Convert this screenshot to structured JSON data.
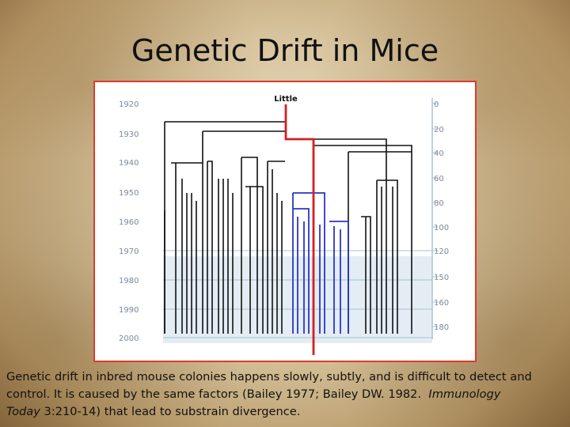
{
  "slide": {
    "title": "Genetic Drift in Mice",
    "caption": {
      "part1": "Genetic drift in inbred mouse colonies happens slowly, subtly, and is difficult to detect and control. It is caused by the same factors (Bailey 1977; Bailey DW. 1982.",
      "journal_a": "Immunology",
      "journal_b": "Today",
      "part2": "3:210-14) that lead to substrain divergence."
    }
  },
  "figure": {
    "root_label": "Little",
    "years": [
      "1920",
      "1930",
      "1940",
      "1950",
      "1960",
      "1970",
      "1980",
      "1990",
      "2000"
    ],
    "generations": [
      "0",
      "20",
      "40",
      "60",
      "80",
      "100",
      "120",
      "150",
      "160",
      "180"
    ],
    "colors": {
      "highlight": "#d42020",
      "substrain": "#2a36c8",
      "lineage": "#111111",
      "recent_band": "#e3edf3",
      "gridline": "#a9c3d3",
      "border": "#e03a2a",
      "axis_text": "#7a8a99"
    }
  }
}
